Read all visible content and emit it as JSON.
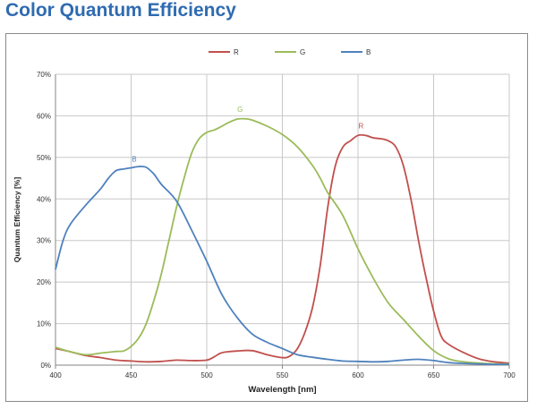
{
  "header": {
    "title": "Color Quantum Efficiency"
  },
  "colors": {
    "title": "#2f6bb0",
    "R": "#c0504d",
    "G": "#9bbb59",
    "B": "#4f81bd",
    "grid": "#c8c8c8",
    "axis": "#868686"
  },
  "chart_data": {
    "type": "line",
    "xlabel": "Wavelength [nm]",
    "ylabel": "Quantum Efficiency [%]",
    "xlim": [
      400,
      700
    ],
    "ylim": [
      0,
      70
    ],
    "x_ticks": [
      400,
      450,
      500,
      550,
      600,
      650,
      700
    ],
    "x_tick_labels": [
      "400",
      "450",
      "500",
      "550",
      "600",
      "650",
      "700"
    ],
    "y_ticks": [
      0,
      10,
      20,
      30,
      40,
      50,
      60,
      70
    ],
    "y_tick_labels": [
      "0%",
      "10%",
      "20%",
      "30%",
      "40%",
      "50%",
      "60%",
      "70%"
    ],
    "grid": true,
    "legend_position": "top-center",
    "series": [
      {
        "name": "R",
        "color": "#c0504d",
        "label": "R",
        "label_at": [
          602,
          57
        ],
        "points": [
          [
            400,
            4.0
          ],
          [
            410,
            3.2
          ],
          [
            420,
            2.3
          ],
          [
            430,
            1.8
          ],
          [
            440,
            1.2
          ],
          [
            450,
            1.0
          ],
          [
            460,
            0.8
          ],
          [
            470,
            0.9
          ],
          [
            480,
            1.2
          ],
          [
            490,
            1.1
          ],
          [
            500,
            1.2
          ],
          [
            505,
            2.0
          ],
          [
            510,
            3.0
          ],
          [
            520,
            3.4
          ],
          [
            530,
            3.5
          ],
          [
            540,
            2.5
          ],
          [
            550,
            1.8
          ],
          [
            555,
            2.2
          ],
          [
            560,
            4.0
          ],
          [
            565,
            8.0
          ],
          [
            570,
            14.0
          ],
          [
            575,
            24.0
          ],
          [
            580,
            38.0
          ],
          [
            585,
            48.0
          ],
          [
            590,
            52.5
          ],
          [
            595,
            54.0
          ],
          [
            600,
            55.3
          ],
          [
            605,
            55.3
          ],
          [
            610,
            54.7
          ],
          [
            615,
            54.5
          ],
          [
            620,
            54.0
          ],
          [
            625,
            52.5
          ],
          [
            630,
            48.0
          ],
          [
            635,
            40.0
          ],
          [
            640,
            30.0
          ],
          [
            645,
            21.0
          ],
          [
            650,
            13.0
          ],
          [
            655,
            7.0
          ],
          [
            660,
            5.0
          ],
          [
            670,
            3.0
          ],
          [
            680,
            1.5
          ],
          [
            690,
            0.8
          ],
          [
            700,
            0.5
          ]
        ]
      },
      {
        "name": "G",
        "color": "#9bbb59",
        "label": "G",
        "label_at": [
          522,
          61
        ],
        "points": [
          [
            400,
            4.3
          ],
          [
            410,
            3.2
          ],
          [
            420,
            2.5
          ],
          [
            430,
            2.9
          ],
          [
            440,
            3.3
          ],
          [
            445,
            3.4
          ],
          [
            450,
            4.5
          ],
          [
            455,
            6.5
          ],
          [
            460,
            10.0
          ],
          [
            465,
            15.5
          ],
          [
            470,
            22.0
          ],
          [
            475,
            30.0
          ],
          [
            480,
            38.0
          ],
          [
            485,
            45.0
          ],
          [
            490,
            51.0
          ],
          [
            495,
            54.5
          ],
          [
            500,
            56.0
          ],
          [
            505,
            56.6
          ],
          [
            510,
            57.5
          ],
          [
            515,
            58.5
          ],
          [
            520,
            59.2
          ],
          [
            525,
            59.3
          ],
          [
            530,
            59.0
          ],
          [
            540,
            57.5
          ],
          [
            550,
            55.5
          ],
          [
            560,
            52.5
          ],
          [
            570,
            48.0
          ],
          [
            575,
            45.0
          ],
          [
            580,
            41.5
          ],
          [
            590,
            36.0
          ],
          [
            600,
            28.0
          ],
          [
            610,
            21.0
          ],
          [
            620,
            15.0
          ],
          [
            630,
            11.0
          ],
          [
            640,
            7.0
          ],
          [
            650,
            3.5
          ],
          [
            660,
            1.5
          ],
          [
            670,
            0.8
          ],
          [
            680,
            0.5
          ],
          [
            690,
            0.3
          ],
          [
            700,
            0.3
          ]
        ]
      },
      {
        "name": "B",
        "color": "#4f81bd",
        "label": "B",
        "label_at": [
          452,
          49
        ],
        "points": [
          [
            400,
            23.0
          ],
          [
            405,
            30.0
          ],
          [
            410,
            34.0
          ],
          [
            420,
            38.5
          ],
          [
            430,
            42.5
          ],
          [
            435,
            45.0
          ],
          [
            440,
            46.8
          ],
          [
            445,
            47.2
          ],
          [
            450,
            47.5
          ],
          [
            455,
            47.8
          ],
          [
            460,
            47.6
          ],
          [
            465,
            46.0
          ],
          [
            470,
            43.5
          ],
          [
            480,
            39.5
          ],
          [
            490,
            32.5
          ],
          [
            500,
            25.0
          ],
          [
            510,
            17.0
          ],
          [
            520,
            11.5
          ],
          [
            530,
            7.5
          ],
          [
            540,
            5.5
          ],
          [
            550,
            4.0
          ],
          [
            560,
            2.5
          ],
          [
            570,
            1.9
          ],
          [
            580,
            1.4
          ],
          [
            590,
            1.0
          ],
          [
            600,
            0.9
          ],
          [
            610,
            0.8
          ],
          [
            620,
            0.9
          ],
          [
            630,
            1.2
          ],
          [
            640,
            1.4
          ],
          [
            650,
            1.1
          ],
          [
            660,
            0.6
          ],
          [
            670,
            0.4
          ],
          [
            680,
            0.3
          ],
          [
            690,
            0.2
          ],
          [
            700,
            0.2
          ]
        ]
      }
    ]
  }
}
